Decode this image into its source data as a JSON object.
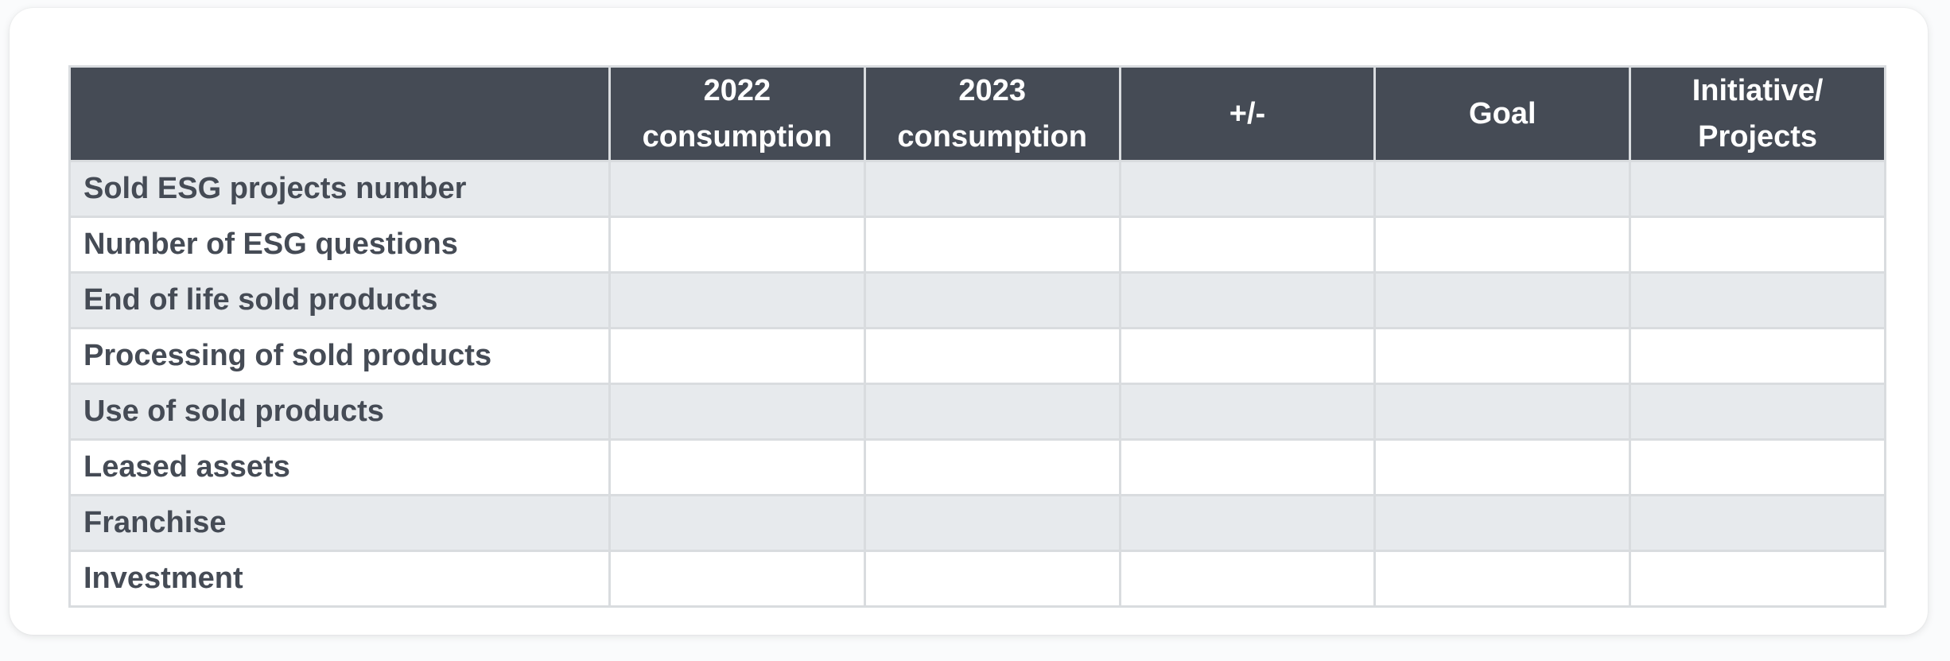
{
  "table": {
    "header": {
      "label_col": "",
      "columns": [
        {
          "key": "c2022",
          "lines": [
            "2022",
            "consumption"
          ]
        },
        {
          "key": "c2023",
          "lines": [
            "2023",
            "consumption"
          ]
        },
        {
          "key": "diff",
          "lines": [
            "+/-"
          ]
        },
        {
          "key": "goal",
          "lines": [
            "Goal"
          ]
        },
        {
          "key": "initiative",
          "lines": [
            "Initiative/",
            "Projects"
          ]
        }
      ]
    },
    "rows": [
      {
        "label": "Sold ESG projects number"
      },
      {
        "label": "Number of ESG questions"
      },
      {
        "label": "End of life sold products"
      },
      {
        "label": "Processing of sold products"
      },
      {
        "label": "Use of sold products"
      },
      {
        "label": "Leased assets"
      },
      {
        "label": "Franchise"
      },
      {
        "label": "Investment"
      }
    ]
  },
  "colors": {
    "header_bg": "#454b55",
    "header_text": "#ffffff",
    "stripe_bg": "#e7eaed",
    "row_text": "#454b55",
    "border": "#d9dcdf"
  }
}
